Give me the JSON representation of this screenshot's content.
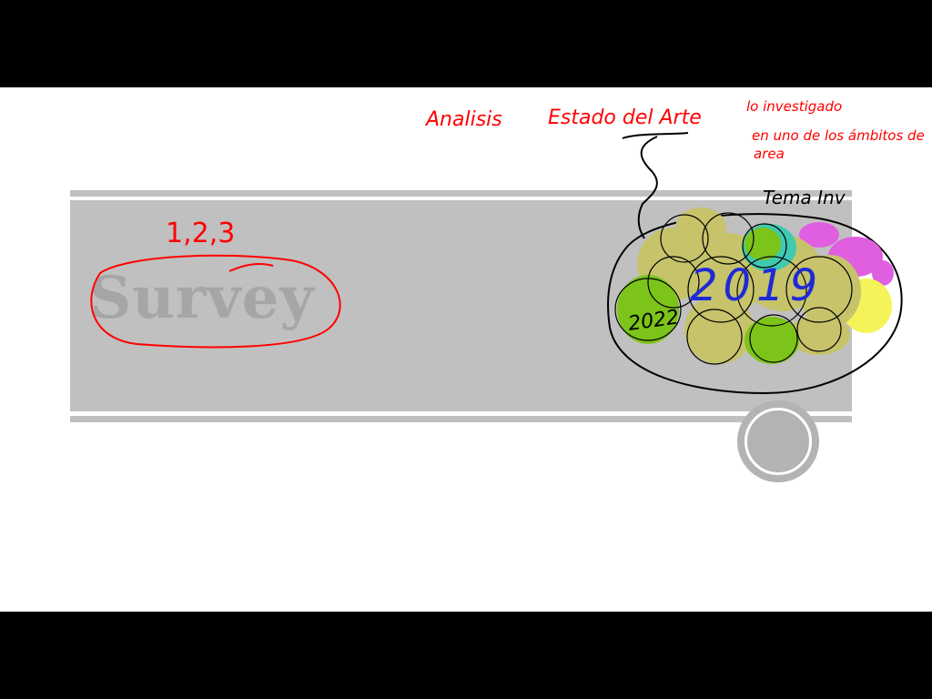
{
  "slide": {
    "title": "Survey"
  },
  "annotations": {
    "numbers": "1,2,3",
    "analisis": "Analisis",
    "estado_del_arte": "Estado del Arte",
    "note_line1": "lo investigado",
    "note_line2": "en uno de los ámbitos de",
    "note_line3": "area",
    "tema": "Tema Inv",
    "year_big": "2019",
    "year_small": "2022"
  },
  "colors": {
    "ink_red": "#ff0000",
    "ink_blue": "#1e2ad6",
    "ink_black": "#000000",
    "bubble_olive": "#c6c36a",
    "bubble_green": "#7cc31a",
    "bubble_teal": "#3fc9b0",
    "bubble_magenta": "#e05ee0",
    "bubble_yellow": "#f4f45a",
    "band_gray": "#c0c0c0"
  },
  "controls": {
    "nav_button_icon": "circle-button-icon"
  }
}
